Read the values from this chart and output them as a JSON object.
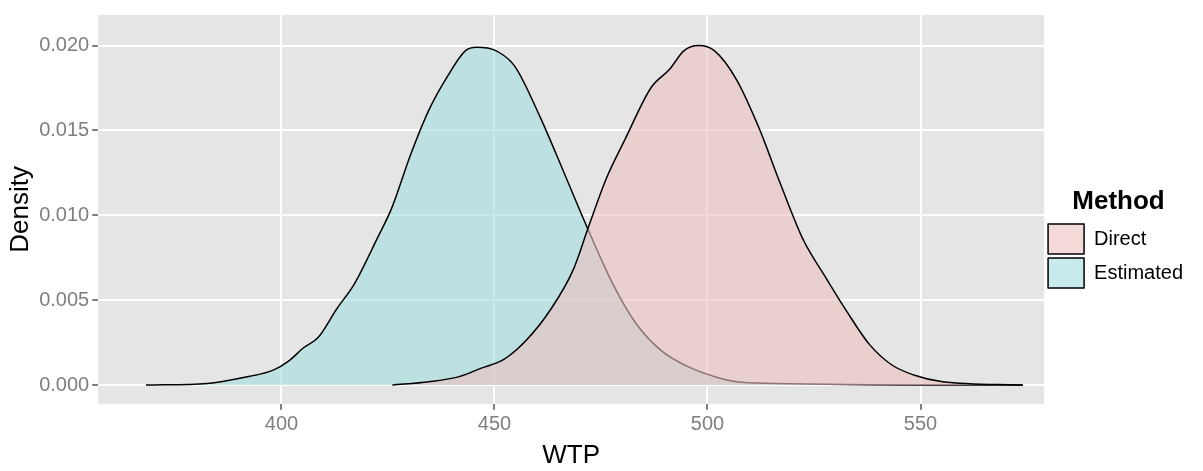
{
  "chart_data": {
    "type": "area",
    "xlabel": "WTP",
    "ylabel": "Density",
    "legend_title": "Method",
    "legend": "right",
    "grid": true,
    "xlim": [
      357,
      579
    ],
    "ylim": [
      -0.0011,
      0.0218
    ],
    "xticks": [
      400,
      450,
      500,
      550
    ],
    "yticks": [
      {
        "value": 0,
        "label": "0.000"
      },
      {
        "value": 0.005,
        "label": "0.005"
      },
      {
        "value": 0.01,
        "label": "0.010"
      },
      {
        "value": 0.015,
        "label": "0.015"
      },
      {
        "value": 0.02,
        "label": "0.020"
      }
    ],
    "series": [
      {
        "name": "Direct",
        "color": "#ecbfbf",
        "x": [
          426,
          434.6,
          441.7,
          446.9,
          452.1,
          457.3,
          463.3,
          468.5,
          471.9,
          476.3,
          480.7,
          486.7,
          491.1,
          494.5,
          497.9,
          501.6,
          506.8,
          512,
          517.2,
          522.4,
          527.6,
          532.8,
          538,
          543.2,
          548.4,
          555.2,
          574
        ],
        "values": [
          0,
          0.0002,
          0.0005,
          0.001,
          0.0015,
          0.0026,
          0.0045,
          0.0068,
          0.0092,
          0.0122,
          0.0145,
          0.0175,
          0.0186,
          0.0197,
          0.02,
          0.0197,
          0.018,
          0.0152,
          0.0118,
          0.0086,
          0.0064,
          0.0043,
          0.0024,
          0.0012,
          0.0006,
          0.0002,
          0
        ]
      },
      {
        "name": "Estimated",
        "color": "#a2dcdc",
        "x": [
          368.2,
          382.6,
          391.1,
          398.2,
          401.6,
          405.2,
          408.6,
          413,
          417.2,
          422.4,
          426,
          430.2,
          434.6,
          439,
          443.2,
          445.8,
          450.3,
          454.7,
          460.7,
          464.5,
          471.9,
          478.1,
          483.3,
          489.3,
          495.3,
          502.3,
          506.8,
          515.4,
          574
        ],
        "values": [
          0,
          0.0001,
          0.00045,
          0.0009,
          0.0014,
          0.0022,
          0.0028,
          0.0045,
          0.006,
          0.0086,
          0.0105,
          0.0135,
          0.0162,
          0.0182,
          0.0197,
          0.0199,
          0.0197,
          0.0188,
          0.0158,
          0.0136,
          0.0092,
          0.0058,
          0.0036,
          0.002,
          0.0011,
          0.00045,
          0.0002,
          0.0001,
          0
        ]
      }
    ]
  }
}
